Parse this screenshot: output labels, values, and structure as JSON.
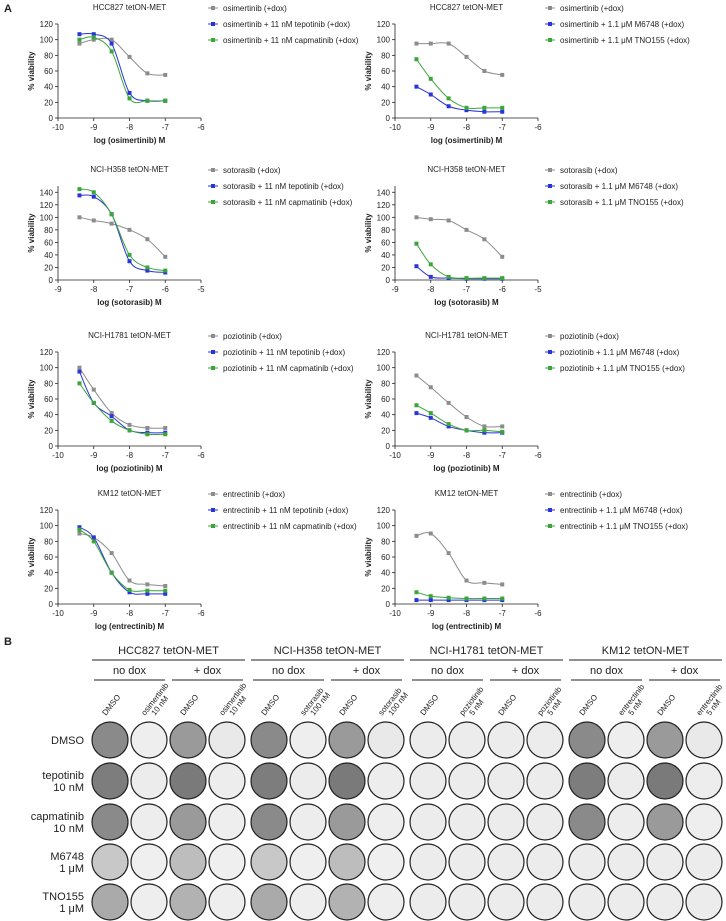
{
  "panel_labels": [
    "A",
    "B"
  ],
  "chart_data": [
    {
      "type": "line",
      "title": "HCC827 tetON-MET",
      "xlabel": "log (osimertinib) M",
      "ylabel": "% viability",
      "x": [
        -9.4,
        -9,
        -8.5,
        -8,
        -7.5,
        -7
      ],
      "xlim": [
        -10,
        -6
      ],
      "xticks": [
        -10,
        -9,
        -8,
        -7,
        -6
      ],
      "ylim": [
        0,
        120
      ],
      "yticks": [
        0,
        20,
        40,
        60,
        80,
        100,
        120
      ],
      "series": [
        {
          "name": "osimertinib (+dox)",
          "color": "#8c8c8c",
          "values": [
            95,
            100,
            100,
            78,
            57,
            55
          ]
        },
        {
          "name": "osimertinib + 11 nM tepotinib (+dox)",
          "color": "#2a35d8",
          "values": [
            107,
            107,
            95,
            32,
            22,
            22
          ]
        },
        {
          "name": "osimertinib + 11 nM capmatinib (+dox)",
          "color": "#3aa63a",
          "values": [
            100,
            103,
            85,
            25,
            22,
            22
          ]
        }
      ]
    },
    {
      "type": "line",
      "title": "HCC827 tetON-MET",
      "xlabel": "log (osimertinib) M",
      "ylabel": "% viability",
      "x": [
        -9.4,
        -9,
        -8.5,
        -8,
        -7.5,
        -7
      ],
      "xlim": [
        -10,
        -6
      ],
      "xticks": [
        -10,
        -9,
        -8,
        -7,
        -6
      ],
      "ylim": [
        0,
        120
      ],
      "yticks": [
        0,
        20,
        40,
        60,
        80,
        100,
        120
      ],
      "series": [
        {
          "name": "osimertinib (+dox)",
          "color": "#8c8c8c",
          "values": [
            95,
            95,
            95,
            78,
            60,
            55
          ]
        },
        {
          "name": "osimertinib + 1.1 μM M6748 (+dox)",
          "color": "#2a35d8",
          "values": [
            40,
            30,
            15,
            10,
            8,
            8
          ]
        },
        {
          "name": "osimertinib + 1.1 μM TNO155 (+dox)",
          "color": "#3aa63a",
          "values": [
            75,
            50,
            25,
            13,
            13,
            13
          ]
        }
      ]
    },
    {
      "type": "line",
      "title": "NCI-H358 tetON-MET",
      "xlabel": "log (sotorasib) M",
      "ylabel": "% viability",
      "x": [
        -8.4,
        -8,
        -7.5,
        -7,
        -6.5,
        -6
      ],
      "xlim": [
        -9,
        -5
      ],
      "xticks": [
        -9,
        -8,
        -7,
        -6,
        -5
      ],
      "ylim": [
        0,
        150
      ],
      "yticks": [
        0,
        20,
        40,
        60,
        80,
        100,
        120,
        140
      ],
      "series": [
        {
          "name": "sotorasib (+dox)",
          "color": "#8c8c8c",
          "values": [
            100,
            95,
            90,
            80,
            65,
            37
          ]
        },
        {
          "name": "sotorasib + 11 nM tepotinib (+dox)",
          "color": "#2a35d8",
          "values": [
            135,
            133,
            105,
            30,
            15,
            12
          ]
        },
        {
          "name": "sotorasib + 11 nM capmatinib (+dox)",
          "color": "#3aa63a",
          "values": [
            145,
            140,
            105,
            40,
            20,
            15
          ]
        }
      ]
    },
    {
      "type": "line",
      "title": "NCI-H358 tetON-MET",
      "xlabel": "log (sotorasib) M",
      "ylabel": "% viability",
      "x": [
        -8.4,
        -8,
        -7.5,
        -7,
        -6.5,
        -6
      ],
      "xlim": [
        -9,
        -5
      ],
      "xticks": [
        -9,
        -8,
        -7,
        -6,
        -5
      ],
      "ylim": [
        0,
        150
      ],
      "yticks": [
        0,
        20,
        40,
        60,
        80,
        100,
        120,
        140
      ],
      "series": [
        {
          "name": "sotorasib (+dox)",
          "color": "#8c8c8c",
          "values": [
            100,
            97,
            95,
            80,
            65,
            37
          ]
        },
        {
          "name": "sotorasib + 1.1 μM M6748 (+dox)",
          "color": "#2a35d8",
          "values": [
            22,
            5,
            3,
            2,
            2,
            2
          ]
        },
        {
          "name": "sotorasib + 1.1 μM TNO155 (+dox)",
          "color": "#3aa63a",
          "values": [
            58,
            25,
            5,
            3,
            3,
            3
          ]
        }
      ]
    },
    {
      "type": "line",
      "title": "NCI-H1781 tetON-MET",
      "xlabel": "log (poziotinib) M",
      "ylabel": "% viability",
      "x": [
        -9.4,
        -9,
        -8.5,
        -8,
        -7.5,
        -7
      ],
      "xlim": [
        -10,
        -6
      ],
      "xticks": [
        -10,
        -9,
        -8,
        -7,
        -6
      ],
      "ylim": [
        0,
        120
      ],
      "yticks": [
        0,
        20,
        40,
        60,
        80,
        100,
        120
      ],
      "series": [
        {
          "name": "poziotinib (+dox)",
          "color": "#8c8c8c",
          "values": [
            100,
            72,
            42,
            27,
            23,
            23
          ]
        },
        {
          "name": "poziotinib + 11 nM tepotinib (+dox)",
          "color": "#2a35d8",
          "values": [
            95,
            55,
            38,
            20,
            17,
            17
          ]
        },
        {
          "name": "poziotinib + 11 nM capmatinib (+dox)",
          "color": "#3aa63a",
          "values": [
            80,
            55,
            32,
            20,
            15,
            15
          ]
        }
      ]
    },
    {
      "type": "line",
      "title": "NCI-H1781 tetON-MET",
      "xlabel": "log (poziotinib) M",
      "ylabel": "% viability",
      "x": [
        -9.4,
        -9,
        -8.5,
        -8,
        -7.5,
        -7
      ],
      "xlim": [
        -10,
        -6
      ],
      "xticks": [
        -10,
        -9,
        -8,
        -7,
        -6
      ],
      "ylim": [
        0,
        120
      ],
      "yticks": [
        0,
        20,
        40,
        60,
        80,
        100,
        120
      ],
      "series": [
        {
          "name": "poziotinib (+dox)",
          "color": "#8c8c8c",
          "values": [
            90,
            75,
            55,
            37,
            25,
            25
          ]
        },
        {
          "name": "poziotinib + 1.1 μM M6748 (+dox)",
          "color": "#2a35d8",
          "values": [
            42,
            36,
            25,
            20,
            17,
            17
          ]
        },
        {
          "name": "poziotinib + 1.1 μM TNO155 (+dox)",
          "color": "#3aa63a",
          "values": [
            52,
            42,
            28,
            20,
            20,
            18
          ]
        }
      ]
    },
    {
      "type": "line",
      "title": "KM12 tetON-MET",
      "xlabel": "log (entrectinib) M",
      "ylabel": "% viability",
      "x": [
        -9.4,
        -9,
        -8.5,
        -8,
        -7.5,
        -7
      ],
      "xlim": [
        -10,
        -6
      ],
      "xticks": [
        -10,
        -9,
        -8,
        -7,
        -6
      ],
      "ylim": [
        0,
        120
      ],
      "yticks": [
        0,
        20,
        40,
        60,
        80,
        100,
        120
      ],
      "series": [
        {
          "name": "entrectinib (+dox)",
          "color": "#8c8c8c",
          "values": [
            90,
            85,
            65,
            30,
            25,
            23
          ]
        },
        {
          "name": "entrectinib + 11 nM tepotinib (+dox)",
          "color": "#2a35d8",
          "values": [
            98,
            85,
            40,
            15,
            13,
            13
          ]
        },
        {
          "name": "entrectinib + 11 nM capmatinib (+dox)",
          "color": "#3aa63a",
          "values": [
            95,
            80,
            40,
            18,
            17,
            17
          ]
        }
      ]
    },
    {
      "type": "line",
      "title": "KM12 tetON-MET",
      "xlabel": "log (entrectinib) M",
      "ylabel": "% viability",
      "x": [
        -9.4,
        -9,
        -8.5,
        -8,
        -7.5,
        -7
      ],
      "xlim": [
        -10,
        -6
      ],
      "xticks": [
        -10,
        -9,
        -8,
        -7,
        -6
      ],
      "ylim": [
        0,
        120
      ],
      "yticks": [
        0,
        20,
        40,
        60,
        80,
        100,
        120
      ],
      "series": [
        {
          "name": "entrectinib (+dox)",
          "color": "#8c8c8c",
          "values": [
            87,
            90,
            65,
            30,
            27,
            25
          ]
        },
        {
          "name": "entrectinib + 1.1 μM M6748 (+dox)",
          "color": "#2a35d8",
          "values": [
            5,
            5,
            5,
            5,
            5,
            5
          ]
        },
        {
          "name": "entrectinib + 1.1 μM TNO155 (+dox)",
          "color": "#3aa63a",
          "values": [
            15,
            10,
            8,
            7,
            7,
            7
          ]
        }
      ]
    }
  ],
  "panel_b": {
    "conditions": [
      "no dox",
      "+ dox"
    ],
    "rows": [
      [
        "DMSO"
      ],
      [
        "tepotinib",
        "10 nM"
      ],
      [
        "capmatinib",
        "10 nM"
      ],
      [
        "M6748",
        "1 μM"
      ],
      [
        "TNO155",
        "1 μM"
      ]
    ],
    "groups": [
      {
        "title": "HCC827 tetON-MET",
        "columns": [
          [
            "DMSO"
          ],
          [
            "osimertinib",
            "10 nM"
          ],
          [
            "DMSO"
          ],
          [
            "osimertinib",
            "10 nM"
          ]
        ]
      },
      {
        "title": "NCI-H358 tetON-MET",
        "columns": [
          [
            "DMSO"
          ],
          [
            "sotorasib",
            "100 nM"
          ],
          [
            "DMSO"
          ],
          [
            "sotorasib",
            "100 nM"
          ]
        ]
      },
      {
        "title": "NCI-H1781 tetON-MET",
        "columns": [
          [
            "DMSO"
          ],
          [
            "poziotinib",
            "5 nM"
          ],
          [
            "DMSO"
          ],
          [
            "poziotinib",
            "5 nM"
          ]
        ]
      },
      {
        "title": "KM12 tetON-MET",
        "columns": [
          [
            "DMSO"
          ],
          [
            "entrectinib",
            "5 nM"
          ],
          [
            "DMSO"
          ],
          [
            "entrectinib",
            "5 nM"
          ]
        ]
      }
    ]
  }
}
